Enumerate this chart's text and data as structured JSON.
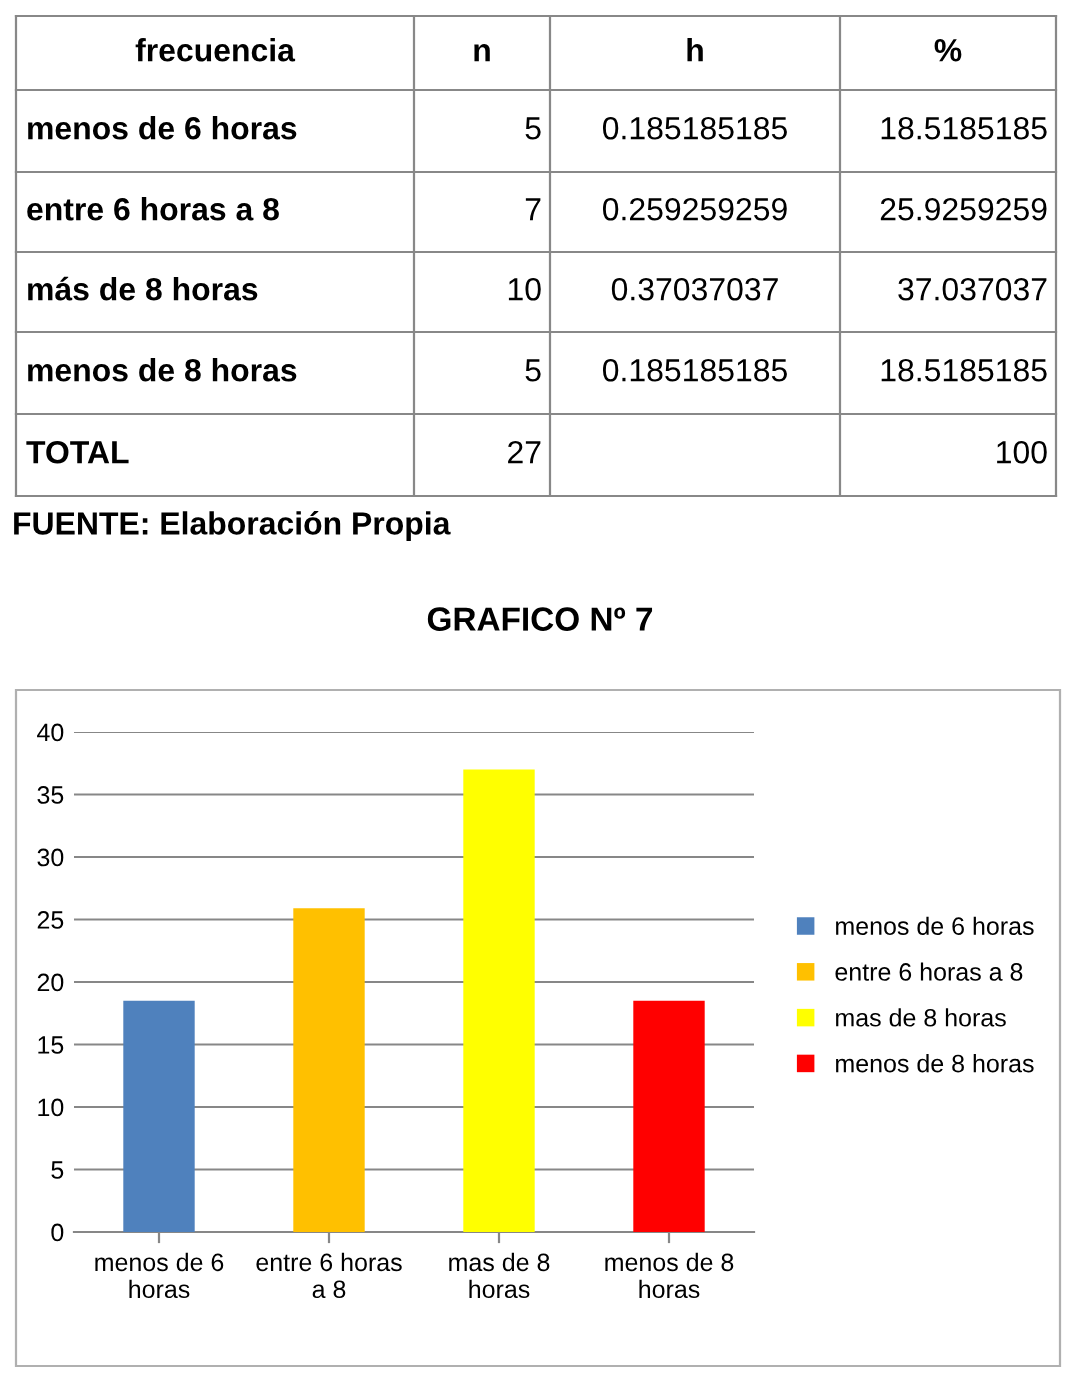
{
  "chart_data": {
    "type": "bar",
    "title": "GRAFICO Nº 7",
    "annotations": [
      "frecuencia",
      "n",
      "h",
      "%",
      "menos de 6 horas",
      "5",
      "0.185185185",
      "18.5185185",
      "entre 6 horas a 8",
      "7",
      "0.259259259",
      "25.9259259",
      "más de 8 horas",
      "10",
      "0.37037037",
      "37.037037",
      "menos de 8 horas",
      "5",
      "0.185185185",
      "18.5185185",
      "TOTAL",
      "27",
      null,
      "100",
      "FUENTE: Elaboración Propia"
    ],
    "categories": [
      "menos de 6\nhoras",
      "entre 6 horas\na 8",
      "mas de 8\nhoras",
      "menos de 8\nhoras"
    ],
    "series": [
      {
        "name": "menos de 6 horas",
        "color": "#4f81bd",
        "values": [
          18.5,
          null,
          null,
          null
        ]
      },
      {
        "name": "entre 6 horas a 8",
        "color": "#ffc000",
        "values": [
          null,
          25.9,
          null,
          null
        ]
      },
      {
        "name": "mas de 8 horas",
        "color": "#ffff00",
        "values": [
          null,
          null,
          37.0,
          null
        ]
      },
      {
        "name": "menos de 8 horas",
        "color": "#ff0000",
        "values": [
          null,
          null,
          null,
          18.5
        ]
      }
    ],
    "ylim": [
      0,
      40
    ],
    "yticks": [
      0,
      5,
      10,
      15,
      20,
      25,
      30,
      35,
      40
    ],
    "grid": "y",
    "legend": "right"
  }
}
